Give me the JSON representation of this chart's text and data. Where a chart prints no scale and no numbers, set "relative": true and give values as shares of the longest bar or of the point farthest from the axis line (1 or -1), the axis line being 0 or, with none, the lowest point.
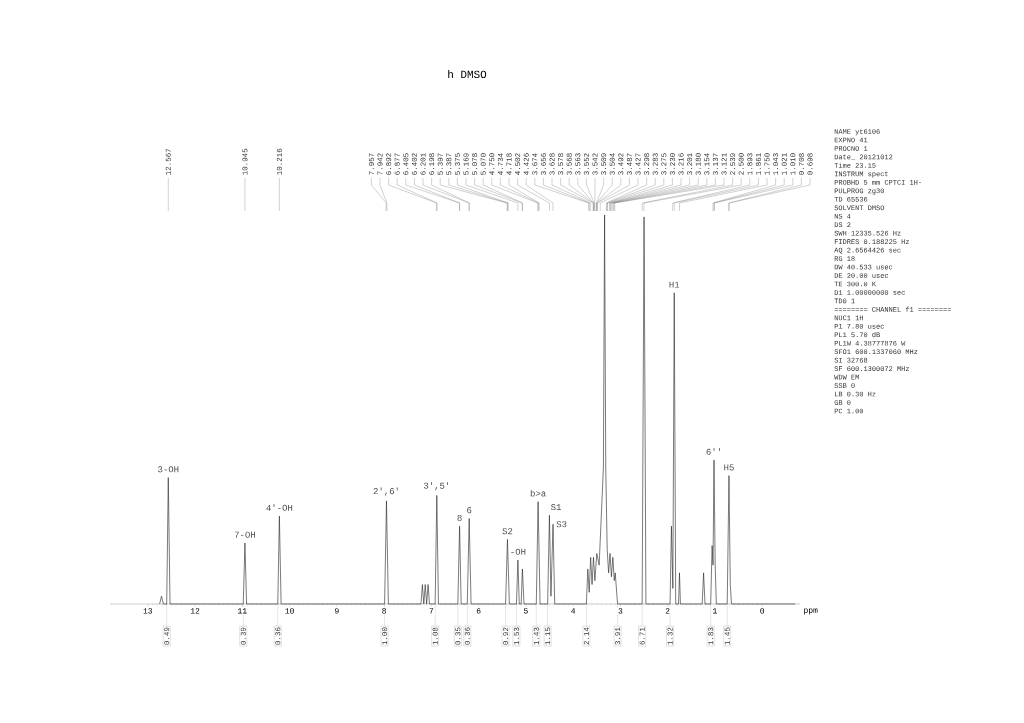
{
  "chart_data": {
    "type": "line",
    "title": "h DMSO",
    "xlabel": "ppm",
    "relative": true,
    "line_style": "solid",
    "xlim": [
      13.8,
      -0.8
    ],
    "xticks": [
      13,
      12,
      11,
      10,
      9,
      8,
      7,
      6,
      5,
      4,
      3,
      2,
      1,
      0
    ],
    "x": [
      12.75,
      12.71,
      12.67,
      12.6,
      12.567,
      12.53,
      10.98,
      10.945,
      10.91,
      10.25,
      10.216,
      10.18,
      7.99,
      7.95,
      7.91,
      7.22,
      7.19,
      7.16,
      7.13,
      7.1,
      7.07,
      7.04,
      6.92,
      6.885,
      6.85,
      6.44,
      6.403,
      6.37,
      6.24,
      6.2,
      6.16,
      5.43,
      5.39,
      5.35,
      5.2,
      5.169,
      5.14,
      5.1,
      5.074,
      5.04,
      4.78,
      4.742,
      4.7,
      4.54,
      4.502,
      4.47,
      4.426,
      4.39,
      3.72,
      3.69,
      3.66,
      3.63,
      3.6,
      3.57,
      3.54,
      3.5,
      3.45,
      3.36,
      3.335,
      3.31,
      3.28,
      3.25,
      3.22,
      3.19,
      3.16,
      3.13,
      3.11,
      3.06,
      2.54,
      2.5,
      2.46,
      1.95,
      1.92,
      1.89,
      1.861,
      1.83,
      1.77,
      1.75,
      1.73,
      1.27,
      1.24,
      1.21,
      1.09,
      1.06,
      1.04,
      1.02,
      0.995,
      0.97,
      0.74,
      0.703,
      0.675,
      0.65,
      -0.7
    ],
    "series": [
      {
        "color": "#222222",
        "values": [
          0,
          0.02,
          0,
          0,
          0.325,
          0,
          0,
          0.157,
          0,
          0,
          0.226,
          0,
          0,
          0.265,
          0,
          0,
          0.05,
          0,
          0.05,
          0,
          0.05,
          0,
          0,
          0.279,
          0,
          0,
          0.2,
          0,
          0,
          0.22,
          0,
          0,
          0.166,
          0,
          0,
          0.113,
          0,
          0,
          0.09,
          0,
          0,
          0.263,
          0,
          0,
          0.228,
          0.02,
          0.205,
          0,
          0,
          0.09,
          0.03,
          0.12,
          0.05,
          0.12,
          0.06,
          0.13,
          0.1,
          0.35,
          1.0,
          0.35,
          0.14,
          0.08,
          0.13,
          0.07,
          0.12,
          0.06,
          0.08,
          0,
          0,
          0.995,
          0,
          0,
          0.2,
          0.04,
          0.8,
          0,
          0,
          0.08,
          0,
          0,
          0.08,
          0,
          0,
          0.15,
          0.1,
          0.37,
          0.1,
          0,
          0,
          0.33,
          0.05,
          0,
          0
        ]
      }
    ],
    "annotations": [
      {
        "text": "12.567",
        "x": 12.567
      },
      {
        "text": "10.945",
        "x": 10.945
      },
      {
        "text": "10.216",
        "x": 10.216
      },
      {
        "text": "7.957",
        "x": 7.957
      },
      {
        "text": "7.942",
        "x": 7.942
      },
      {
        "text": "6.892",
        "x": 6.892
      },
      {
        "text": "6.877",
        "x": 6.877
      },
      {
        "text": "6.405",
        "x": 6.405
      },
      {
        "text": "6.402",
        "x": 6.402
      },
      {
        "text": "6.201",
        "x": 6.201
      },
      {
        "text": "6.198",
        "x": 6.198
      },
      {
        "text": "5.397",
        "x": 5.397
      },
      {
        "text": "5.387",
        "x": 5.387
      },
      {
        "text": "5.375",
        "x": 5.375
      },
      {
        "text": "5.169",
        "x": 5.169
      },
      {
        "text": "5.078",
        "x": 5.078
      },
      {
        "text": "5.070",
        "x": 5.07
      },
      {
        "text": "4.750",
        "x": 4.75
      },
      {
        "text": "4.734",
        "x": 4.734
      },
      {
        "text": "4.718",
        "x": 4.718
      },
      {
        "text": "4.502",
        "x": 4.502
      },
      {
        "text": "4.426",
        "x": 4.426
      },
      {
        "text": "3.674",
        "x": 3.674
      },
      {
        "text": "3.656",
        "x": 3.656
      },
      {
        "text": "3.628",
        "x": 3.628
      },
      {
        "text": "3.578",
        "x": 3.578
      },
      {
        "text": "3.568",
        "x": 3.568
      },
      {
        "text": "3.563",
        "x": 3.563
      },
      {
        "text": "3.552",
        "x": 3.552
      },
      {
        "text": "3.542",
        "x": 3.542
      },
      {
        "text": "3.509",
        "x": 3.509
      },
      {
        "text": "3.504",
        "x": 3.504
      },
      {
        "text": "3.492",
        "x": 3.492
      },
      {
        "text": "3.487",
        "x": 3.487
      },
      {
        "text": "3.427",
        "x": 3.427
      },
      {
        "text": "3.298",
        "x": 3.298
      },
      {
        "text": "3.283",
        "x": 3.283
      },
      {
        "text": "3.275",
        "x": 3.275
      },
      {
        "text": "3.230",
        "x": 3.23
      },
      {
        "text": "3.216",
        "x": 3.216
      },
      {
        "text": "3.201",
        "x": 3.201
      },
      {
        "text": "3.180",
        "x": 3.18
      },
      {
        "text": "3.154",
        "x": 3.154
      },
      {
        "text": "3.137",
        "x": 3.137
      },
      {
        "text": "3.121",
        "x": 3.121
      },
      {
        "text": "2.539",
        "x": 2.539
      },
      {
        "text": "2.500",
        "x": 2.5
      },
      {
        "text": "1.893",
        "x": 1.893
      },
      {
        "text": "1.861",
        "x": 1.861
      },
      {
        "text": "1.750",
        "x": 1.75
      },
      {
        "text": "1.043",
        "x": 1.043
      },
      {
        "text": "1.021",
        "x": 1.021
      },
      {
        "text": "1.010",
        "x": 1.01
      },
      {
        "text": "0.708",
        "x": 0.708
      },
      {
        "text": "0.698",
        "x": 0.698
      },
      {
        "text": "0.49",
        "x": 12.6,
        "y": 0
      },
      {
        "text": "0.39",
        "x": 10.98,
        "y": 0
      },
      {
        "text": "0.36",
        "x": 10.25,
        "y": 0
      },
      {
        "text": "1.00",
        "x": 7.99,
        "y": 0
      },
      {
        "text": "1.08",
        "x": 6.92,
        "y": 0
      },
      {
        "text": "0.35",
        "x": 6.44,
        "y": 0
      },
      {
        "text": "0.36",
        "x": 6.24,
        "y": 0
      },
      {
        "text": "0.92",
        "x": 5.43,
        "y": 0
      },
      {
        "text": "1.53",
        "x": 5.2,
        "y": 0
      },
      {
        "text": "1.43",
        "x": 4.78,
        "y": 0
      },
      {
        "text": "1.15",
        "x": 4.54,
        "y": 0
      },
      {
        "text": "2.14",
        "x": 3.72,
        "y": 0
      },
      {
        "text": "3.91",
        "x": 3.06,
        "y": 0
      },
      {
        "text": "6.71",
        "x": 2.54,
        "y": 0
      },
      {
        "text": "1.32",
        "x": 1.95,
        "y": 0
      },
      {
        "text": "1.83",
        "x": 1.09,
        "y": 0
      },
      {
        "text": "1.45",
        "x": 0.74,
        "y": 0
      },
      {
        "text": "3-OH",
        "x": 12.567,
        "y": 0.325
      },
      {
        "text": "7-OH",
        "x": 10.945,
        "y": 0.157
      },
      {
        "text": "4'-OH",
        "x": 10.216,
        "y": 0.226
      },
      {
        "text": "2',6'",
        "x": 7.95,
        "y": 0.265
      },
      {
        "text": "3',5'",
        "x": 6.885,
        "y": 0.279
      },
      {
        "text": "8",
        "x": 6.403,
        "y": 0.2
      },
      {
        "text": "6",
        "x": 6.2,
        "y": 0.22
      },
      {
        "text": "S2",
        "x": 5.39,
        "y": 0.166
      },
      {
        "text": "-OH",
        "x": 5.169,
        "y": 0.113
      },
      {
        "text": "b>a",
        "x": 4.742,
        "y": 0.263
      },
      {
        "text": "S1",
        "x": 4.502,
        "y": 0.228
      },
      {
        "text": "S3",
        "x": 4.426,
        "y": 0.205
      },
      {
        "text": "H1",
        "x": 1.861,
        "y": 0.8
      },
      {
        "text": "6''",
        "x": 1.02,
        "y": 0.37
      },
      {
        "text": "H5",
        "x": 0.703,
        "y": 0.33
      },
      "NAME yt6106",
      "EXPNO 41",
      "PROCNO 1",
      "Date_ 20121012",
      "Time 23.15",
      "INSTRUM spect",
      "PROBHD 5 mm CPTCI 1H-",
      "PULPROG zg30",
      "TD 65536",
      "SOLVENT DMSO",
      "NS 4",
      "DS 2",
      "SWH 12335.526 Hz",
      "FIDRES 0.188225 Hz",
      "AQ 2.6564426 sec",
      "RG 18",
      "DW 40.533 usec",
      "DE 20.00 usec",
      "TE 300.0 K",
      "D1 1.00000000 sec",
      "TD0 1",
      "======== CHANNEL f1 ========",
      "NUC1 1H",
      "P1 7.80 usec",
      "PL1 5.70 dB",
      "PL1W 4.38777876 W",
      "SFO1 600.1337060 MHz",
      "SI 32768",
      "SF 600.1300072 MHz",
      "WDW EM",
      "SSB 0",
      "LB 0.30 Hz",
      "GB 0",
      "PC 1.00"
    ]
  }
}
